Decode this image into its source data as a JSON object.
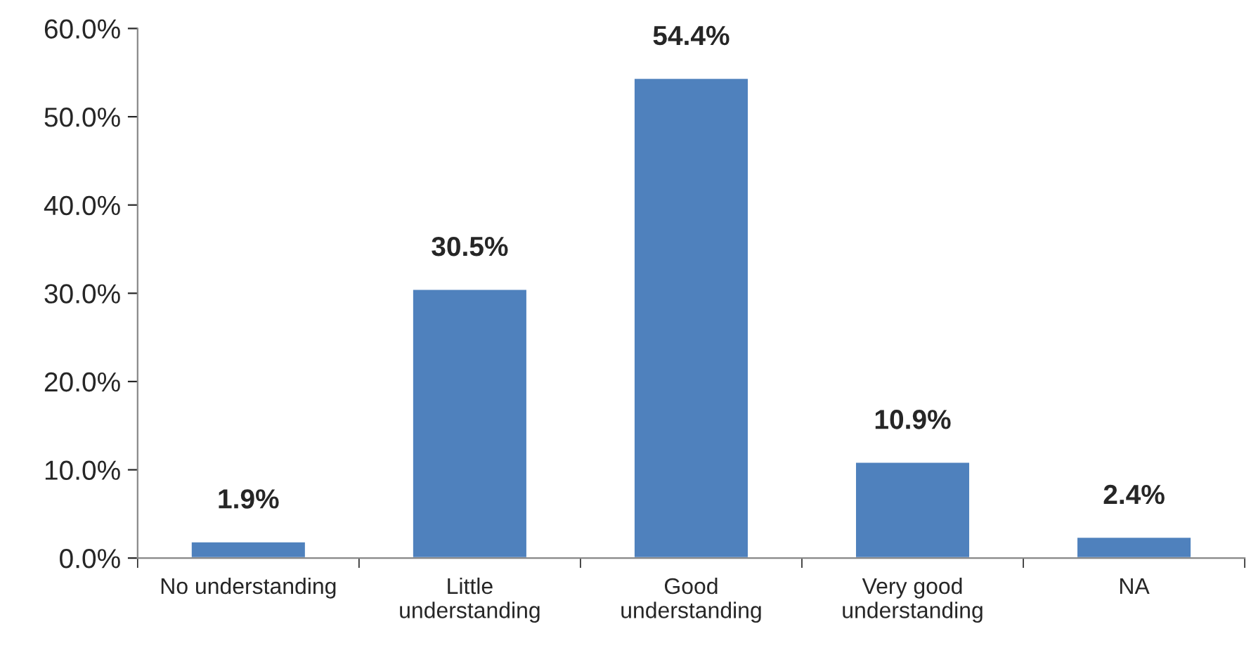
{
  "chart_data": {
    "type": "bar",
    "categories": [
      "No understanding",
      "Little\nunderstanding",
      "Good\nunderstanding",
      "Very good\nunderstanding",
      "NA"
    ],
    "values": [
      1.9,
      30.5,
      54.4,
      10.9,
      2.4
    ],
    "color": "#4f81bd",
    "value_labels": [
      "1.9%",
      "30.5%",
      "54.4%",
      "10.9%",
      "2.4%"
    ],
    "ylim": [
      0,
      60
    ],
    "yticks": [
      {
        "value": 0,
        "label": "0.0%"
      },
      {
        "value": 10,
        "label": "10.0%"
      },
      {
        "value": 20,
        "label": "20.0%"
      },
      {
        "value": 30,
        "label": "30.0%"
      },
      {
        "value": 40,
        "label": "40.0%"
      },
      {
        "value": 50,
        "label": "50.0%"
      },
      {
        "value": 60,
        "label": "60.0%"
      }
    ],
    "grid": false,
    "legend": false
  }
}
